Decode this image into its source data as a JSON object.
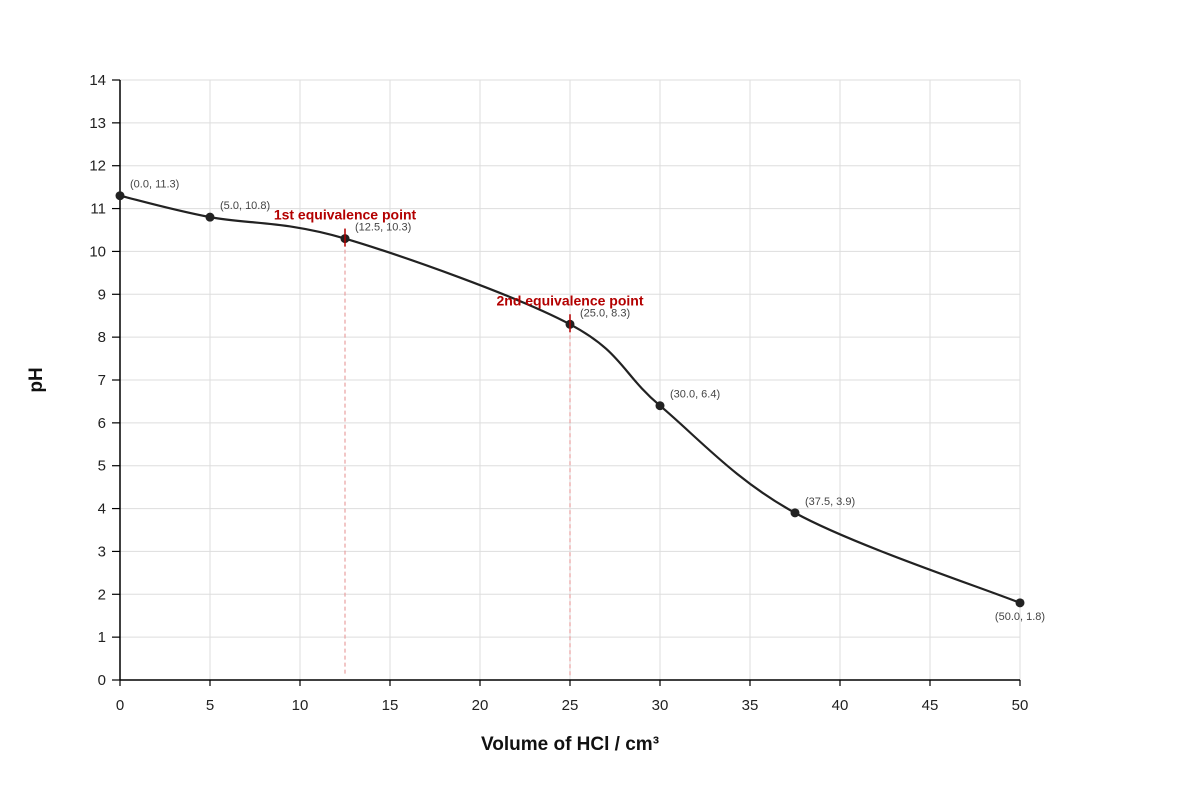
{
  "chart_data": {
    "type": "line",
    "title": "",
    "xlabel": "Volume of HCl / cm³",
    "ylabel": "pH",
    "xlim": [
      0,
      50
    ],
    "ylim": [
      0,
      14
    ],
    "xticks": [
      0,
      5,
      10,
      15,
      20,
      25,
      30,
      35,
      40,
      45,
      50
    ],
    "yticks": [
      0,
      1,
      2,
      3,
      4,
      5,
      6,
      7,
      8,
      9,
      10,
      11,
      12,
      13,
      14
    ],
    "grid": true,
    "smooth": true,
    "series": [
      {
        "points": [
          {
            "x": 0.0,
            "y": 11.3,
            "label": "(0.0, 11.3)"
          },
          {
            "x": 5.0,
            "y": 10.8,
            "label": "(5.0, 10.8)"
          },
          {
            "x": 12.5,
            "y": 10.3,
            "label": "(12.5, 10.3)"
          },
          {
            "x": 25.0,
            "y": 8.3,
            "label": "(25.0, 8.3)"
          },
          {
            "x": 30.0,
            "y": 6.4,
            "label": "(30.0, 6.4)"
          },
          {
            "x": 37.5,
            "y": 3.9,
            "label": "(37.5, 3.9)"
          },
          {
            "x": 50.0,
            "y": 1.8,
            "label": "(50.0, 1.8)"
          }
        ]
      }
    ],
    "annotations": [
      {
        "x": 12.5,
        "y": 10.3,
        "text": "1st equivalence point"
      },
      {
        "x": 25.0,
        "y": 8.3,
        "text": "2nd equivalence point"
      }
    ],
    "colors": {
      "line": "#222222",
      "point": "#222222",
      "grid": "#dddddd",
      "axis": "#000000",
      "annotation": "#b30000",
      "guide": "#e8a0a0"
    }
  }
}
